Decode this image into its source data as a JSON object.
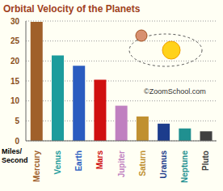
{
  "chart_data": {
    "type": "bar",
    "title": "Orbital Velocity of the Planets",
    "ylabel": "Miles/ Second",
    "annotation": "©ZoomSchool.com",
    "categories": [
      "Mercury",
      "Venus",
      "Earth",
      "Mars",
      "Jupiter",
      "Saturn",
      "Uranus",
      "Neptune",
      "Pluto"
    ],
    "values": [
      29.8,
      21.4,
      18.8,
      15.3,
      8.8,
      6.1,
      4.3,
      3.1,
      2.4
    ],
    "colors": [
      "#a0602a",
      "#1c9c9c",
      "#2a5cc0",
      "#d01010",
      "#c080c0",
      "#c09030",
      "#1c3c8c",
      "#209090",
      "#404040"
    ],
    "ylim": [
      0,
      30
    ],
    "yticks": [
      0,
      5,
      10,
      15,
      20,
      25,
      30
    ],
    "grid": true
  }
}
